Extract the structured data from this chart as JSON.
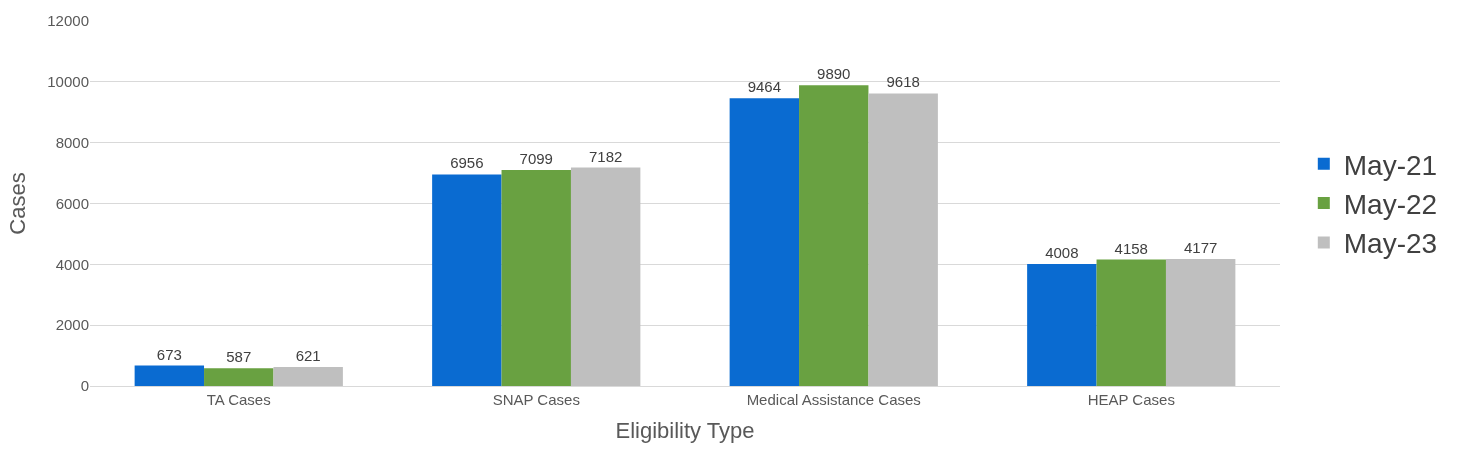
{
  "chart_data": {
    "type": "bar",
    "xlabel": "Eligibility Type",
    "ylabel": "Cases",
    "categories": [
      "TA Cases",
      "SNAP Cases",
      "Medical Assistance Cases",
      "HEAP Cases"
    ],
    "series": [
      {
        "name": "May-21",
        "color": "#0a6bd1",
        "values": [
          673,
          6956,
          9464,
          4008
        ]
      },
      {
        "name": "May-22",
        "color": "#69a141",
        "values": [
          587,
          7099,
          9890,
          4158
        ]
      },
      {
        "name": "May-23",
        "color": "#bfbfbf",
        "values": [
          621,
          7182,
          9618,
          4177
        ]
      }
    ],
    "ylim": [
      0,
      12000
    ],
    "yticks": [
      0,
      2000,
      4000,
      6000,
      8000,
      10000,
      12000
    ],
    "grid": "y",
    "legend": "right",
    "data_labels": true
  }
}
